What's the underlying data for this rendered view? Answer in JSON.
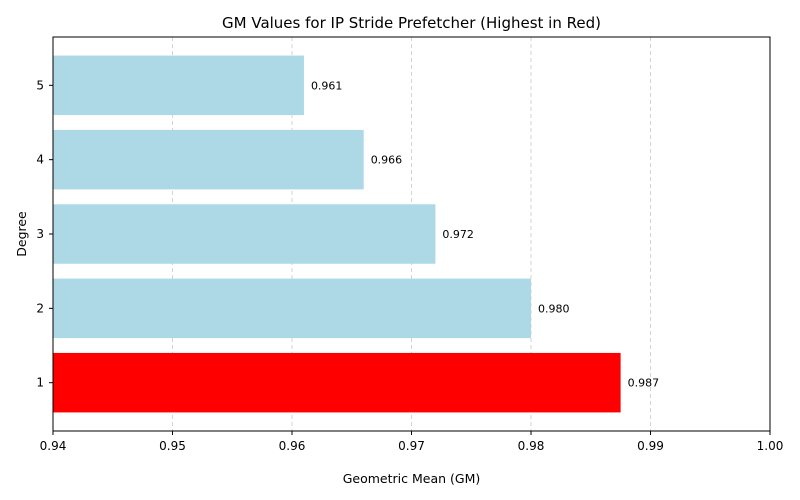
{
  "chart_data": {
    "type": "bar",
    "orientation": "horizontal",
    "title": "GM Values for IP Stride Prefetcher (Highest in Red)",
    "xlabel": "Geometric Mean (GM)",
    "ylabel": "Degree",
    "categories": [
      "1",
      "2",
      "3",
      "4",
      "5"
    ],
    "values": [
      0.9875,
      0.98,
      0.972,
      0.966,
      0.961
    ],
    "value_labels": [
      "0.987",
      "0.980",
      "0.972",
      "0.966",
      "0.961"
    ],
    "bar_colors": [
      "#ff0000",
      "#add8e6",
      "#add8e6",
      "#add8e6",
      "#add8e6"
    ],
    "xlim": [
      0.94,
      1.0
    ],
    "xticks": [
      0.94,
      0.95,
      0.96,
      0.97,
      0.98,
      0.99,
      1.0
    ],
    "xtick_labels": [
      "0.94",
      "0.95",
      "0.96",
      "0.97",
      "0.98",
      "0.99",
      "1.00"
    ],
    "grid": "x-dashed",
    "legend": "none"
  }
}
